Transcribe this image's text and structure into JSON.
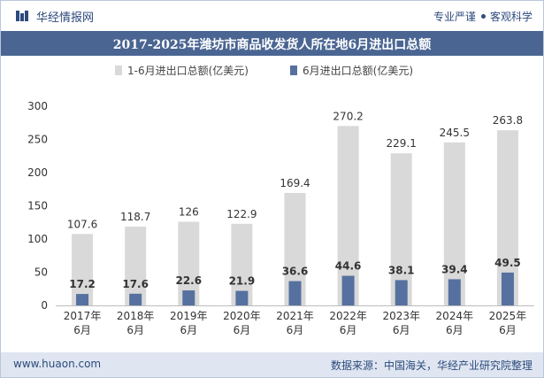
{
  "header": {
    "brand": "华经情报网",
    "slogan_left": "专业严谨",
    "slogan_right": "客观科学"
  },
  "title": "2017-2025年潍坊市商品收发货人所在地6月进出口总额",
  "footer": {
    "url": "www.huaon.com",
    "source": "数据来源：中国海关，华经产业研究院整理"
  },
  "colors": {
    "series_1": "#d9d9d9",
    "series_2": "#56719f",
    "title_bg": "#4a6592",
    "footer_bg": "#dfe6f1"
  },
  "chart_data": {
    "type": "bar",
    "title": "2017-2025年潍坊市商品收发货人所在地6月进出口总额",
    "categories": [
      "2017年\n6月",
      "2018年\n6月",
      "2019年\n6月",
      "2020年\n6月",
      "2021年\n6月",
      "2022年\n6月",
      "2023年\n6月",
      "2024年\n6月",
      "2025年\n6月"
    ],
    "series": [
      {
        "name": "1-6月进出口总额(亿美元)",
        "values": [
          107.6,
          118.7,
          126,
          122.9,
          169.4,
          270.2,
          229.1,
          245.5,
          263.8
        ]
      },
      {
        "name": "6月进出口总额(亿美元)",
        "values": [
          17.2,
          17.6,
          22.6,
          21.9,
          36.6,
          44.6,
          38.1,
          39.4,
          49.5
        ]
      }
    ],
    "ylim": [
      0,
      300
    ],
    "yticks": [
      0,
      50,
      100,
      150,
      200,
      250,
      300
    ],
    "legend_position": "top-center",
    "grid": false
  }
}
